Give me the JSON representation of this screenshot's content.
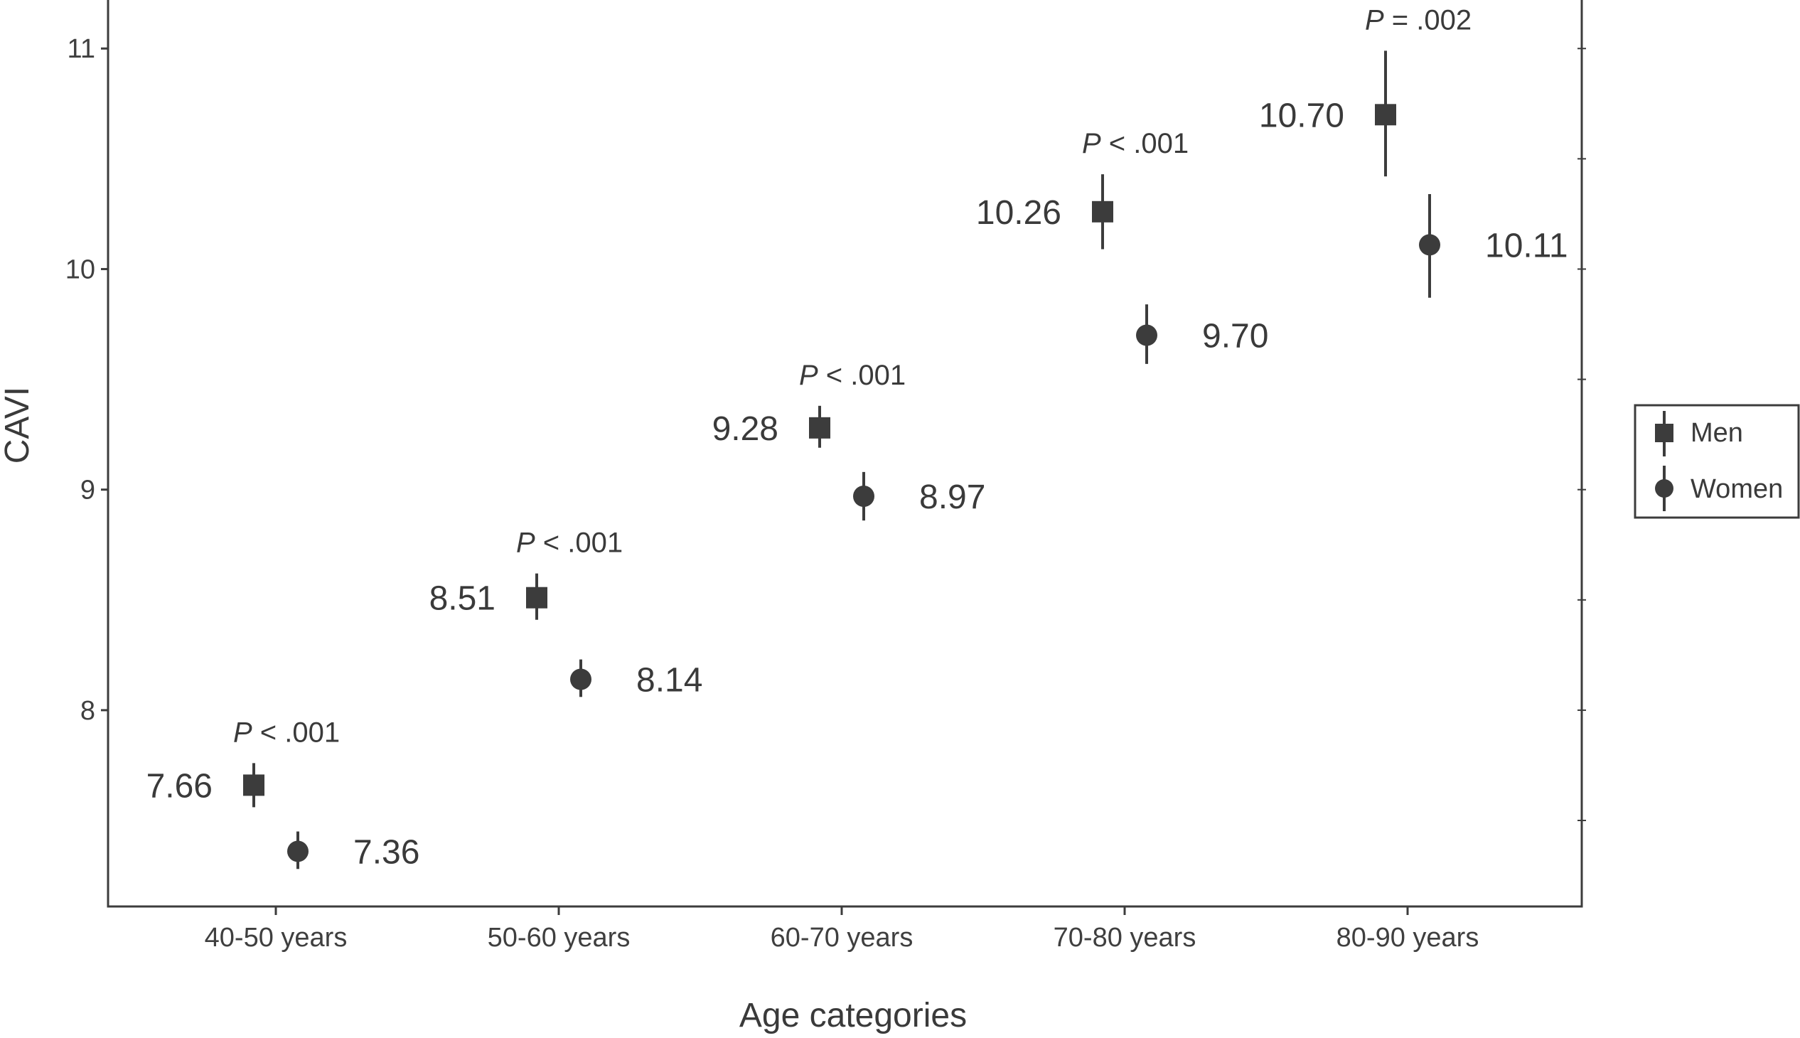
{
  "colors": {
    "mark": "#3c3c3c",
    "axis": "#3c3c3c",
    "background": "#ffffff"
  },
  "chart_data": {
    "type": "scatter",
    "xlabel": "Age categories",
    "ylabel": "CAVI",
    "categories": [
      "40-50 years",
      "50-60 years",
      "60-70 years",
      "70-80 years",
      "80-90 years"
    ],
    "ylim": [
      7.11,
      11.22
    ],
    "yticks": [
      8,
      9,
      10,
      11
    ],
    "grid": false,
    "legend_position": "right",
    "series": [
      {
        "name": "Men",
        "marker": "square",
        "values": [
          7.66,
          8.51,
          9.28,
          10.26,
          10.7
        ],
        "value_labels": [
          "7.66",
          "8.51",
          "9.28",
          "10.26",
          "10.70"
        ],
        "ci_low": [
          7.56,
          8.41,
          9.19,
          10.09,
          10.42
        ],
        "ci_high": [
          7.76,
          8.62,
          9.38,
          10.43,
          10.99
        ]
      },
      {
        "name": "Women",
        "marker": "circle",
        "values": [
          7.36,
          8.14,
          8.97,
          9.7,
          10.11
        ],
        "value_labels": [
          "7.36",
          "8.14",
          "8.97",
          "9.70",
          "10.11"
        ],
        "ci_low": [
          7.28,
          8.06,
          8.86,
          9.57,
          9.87
        ],
        "ci_high": [
          7.45,
          8.23,
          9.08,
          9.84,
          10.34
        ]
      }
    ],
    "annotations": [
      {
        "p": "P",
        "text": " < .001"
      },
      {
        "p": "P",
        "text": " < .001"
      },
      {
        "p": "P",
        "text": " < .001"
      },
      {
        "p": "P",
        "text": " < .001"
      },
      {
        "p": "P",
        "text": " = .002"
      }
    ]
  }
}
